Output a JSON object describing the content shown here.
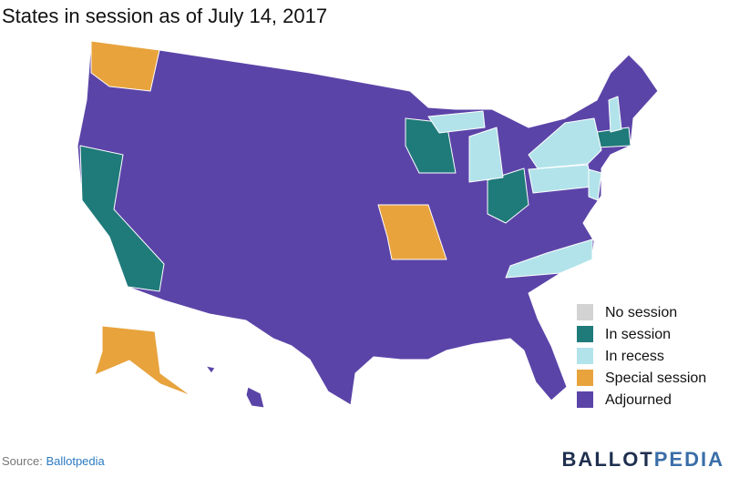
{
  "header": {
    "title": "States in session as of July 14, 2017"
  },
  "legend": [
    {
      "label": "No session",
      "color": "#d3d3d3"
    },
    {
      "label": "In session",
      "color": "#1f7a7a"
    },
    {
      "label": "In recess",
      "color": "#b2e3ea"
    },
    {
      "label": "Special session",
      "color": "#e8a33d"
    },
    {
      "label": "Adjourned",
      "color": "#5b44a8"
    }
  ],
  "footer": {
    "source_label": "Source:",
    "source_name": "Ballotpedia",
    "logo": [
      "BALLOT",
      "PEDIA"
    ]
  }
}
